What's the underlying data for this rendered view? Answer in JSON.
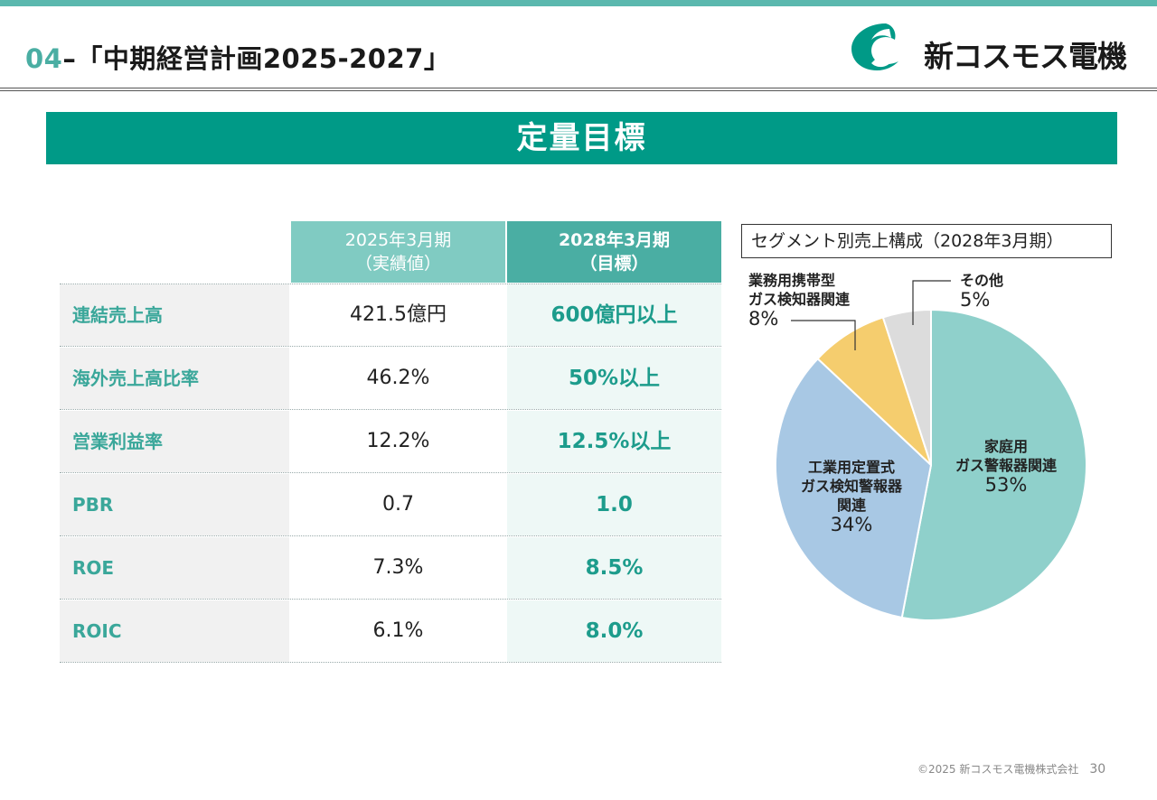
{
  "header": {
    "number": "04",
    "title": "–「中期経営計画2025-2027」",
    "company": "新コスモス電機"
  },
  "section": {
    "title": "定量目標"
  },
  "table": {
    "headers": {
      "actual_line1": "2025年3月期",
      "actual_line2": "（実績値）",
      "target_line1": "2028年3月期",
      "target_line2": "（目標）"
    },
    "rows": [
      {
        "label": "連結売上高",
        "actual": "421.5億円",
        "target": "600億円以上"
      },
      {
        "label": "海外売上高比率",
        "actual": "46.2%",
        "target": "50%以上"
      },
      {
        "label": "営業利益率",
        "actual": "12.2%",
        "target": "12.5%以上"
      },
      {
        "label": "PBR",
        "actual": "0.7",
        "target": "1.0"
      },
      {
        "label": "ROE",
        "actual": "7.3%",
        "target": "8.5%"
      },
      {
        "label": "ROIC",
        "actual": "6.1%",
        "target": "8.0%"
      }
    ]
  },
  "chart_data": {
    "type": "pie",
    "title": "セグメント別売上構成（2028年3月期）",
    "slices": [
      {
        "label_lines": [
          "家庭用",
          "ガス警報器関連"
        ],
        "value": 53,
        "value_label": "53%",
        "color": "#8fd0cb"
      },
      {
        "label_lines": [
          "工業用定置式",
          "ガス検知警報器",
          "関連"
        ],
        "value": 34,
        "value_label": "34%",
        "color": "#a8c8e4"
      },
      {
        "label_lines": [
          "業務用携帯型",
          "ガス検知器関連"
        ],
        "value": 8,
        "value_label": "8%",
        "color": "#f5cd6e"
      },
      {
        "label_lines": [
          "その他"
        ],
        "value": 5,
        "value_label": "5%",
        "color": "#dcdcdc"
      }
    ]
  },
  "footer": {
    "copyright": "©2025 新コスモス電機株式会社",
    "page": "30"
  },
  "colors": {
    "brand": "#009a87",
    "accent": "#4aaea3",
    "header_light": "#80cbc2"
  }
}
